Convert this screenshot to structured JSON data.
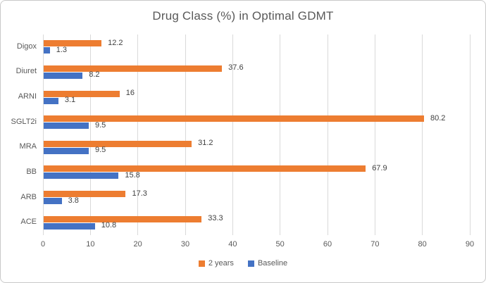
{
  "window": {
    "background": "#ffffff",
    "border_color": "#c9c9c9"
  },
  "chart_data": {
    "type": "bar",
    "orientation": "horizontal",
    "title": "Drug Class (%) in Optimal GDMT",
    "categories": [
      "Digox",
      "Diuret",
      "ARNI",
      "SGLT2i",
      "MRA",
      "BB",
      "ARB",
      "ACE"
    ],
    "series": [
      {
        "name": "2 years",
        "color": "#ED7D31",
        "values": [
          12.2,
          37.6,
          16,
          80.2,
          31.2,
          67.9,
          17.3,
          33.3
        ]
      },
      {
        "name": "Baseline",
        "color": "#4472C4",
        "values": [
          1.3,
          8.2,
          3.1,
          9.5,
          9.5,
          15.8,
          3.8,
          10.8
        ]
      }
    ],
    "xlabel": "",
    "ylabel": "",
    "xlim": [
      0,
      90
    ],
    "xticks": [
      0,
      10,
      20,
      30,
      40,
      50,
      60,
      70,
      80,
      90
    ],
    "grid": true,
    "data_labels": true,
    "legend_position": "bottom",
    "colors": {
      "gridline": "#D9D9D9",
      "axis_text": "#595959",
      "title_text": "#595959",
      "data_label_text": "#404040"
    }
  }
}
